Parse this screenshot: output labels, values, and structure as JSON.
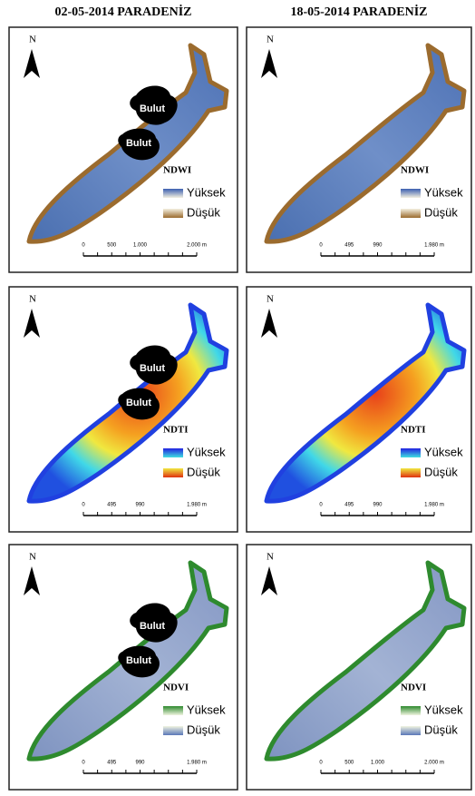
{
  "headers": [
    "02-05-2014 PARADENİZ",
    "18-05-2014 PARADENİZ"
  ],
  "panels": [
    {
      "north": "N",
      "index": "NDWI",
      "legend_high": "Yüksek",
      "legend_low": "Düşük",
      "scale": [
        "0",
        "500",
        "1.000",
        "2.000 m"
      ],
      "clouds": [
        "Bulut",
        "Bulut"
      ]
    },
    {
      "north": "N",
      "index": "NDWI",
      "legend_high": "Yüksek",
      "legend_low": "Düşük",
      "scale": [
        "0",
        "495",
        "990",
        "1.980 m"
      ]
    },
    {
      "north": "N",
      "index": "NDTI",
      "legend_high": "Yüksek",
      "legend_low": "Düşük",
      "scale": [
        "0",
        "495",
        "990",
        "1.980 m"
      ],
      "clouds": [
        "Bulut",
        "Bulut"
      ]
    },
    {
      "north": "N",
      "index": "NDTI",
      "legend_high": "Yüksek",
      "legend_low": "Düşük",
      "scale": [
        "0",
        "495",
        "990",
        "1.980 m"
      ]
    },
    {
      "north": "N",
      "index": "NDVI",
      "legend_high": "Yüksek",
      "legend_low": "Düşük",
      "scale": [
        "0",
        "495",
        "990",
        "1.980 m"
      ],
      "clouds": [
        "Bulut",
        "Bulut"
      ]
    },
    {
      "north": "N",
      "index": "NDVI",
      "legend_high": "Yüksek",
      "legend_low": "Düşük",
      "scale": [
        "0",
        "500",
        "1.000",
        "2.000 m"
      ]
    }
  ]
}
